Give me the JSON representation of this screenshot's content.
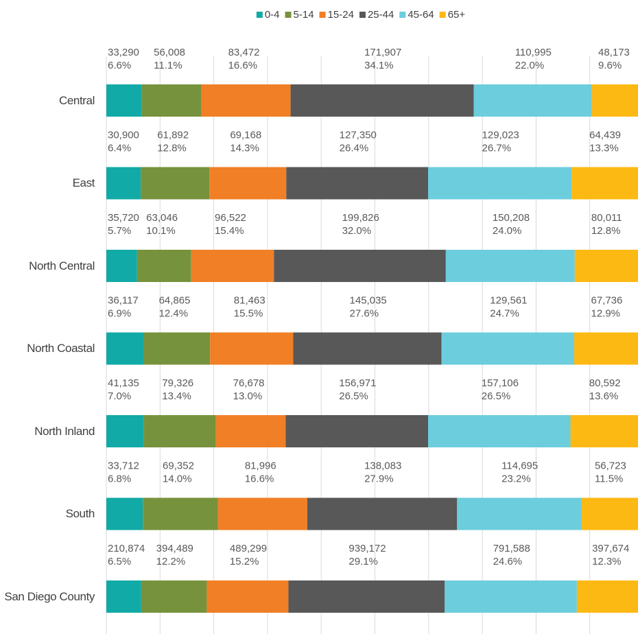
{
  "chart_data": {
    "type": "bar",
    "orientation": "horizontal",
    "stacked": true,
    "categories": [
      "Central",
      "East",
      "North Central",
      "North Coastal",
      "North Inland",
      "South",
      "San Diego County"
    ],
    "xlim": [
      0,
      100
    ],
    "xticks": [
      0,
      10,
      20,
      30,
      40,
      50,
      60,
      70,
      80,
      90,
      100
    ],
    "grid": true,
    "legend": "top",
    "series": [
      {
        "name": "0-4",
        "color": "#12aaa6",
        "values": [
          6.6,
          6.4,
          5.7,
          6.9,
          7.0,
          6.8,
          6.5
        ],
        "value_labels": [
          "6.6%",
          "6.4%",
          "5.7%",
          "6.9%",
          "7.0%",
          "6.8%",
          "6.5%"
        ],
        "count_labels": [
          "33,290",
          "30,900",
          "35,720",
          "36,117",
          "41,135",
          "33,712",
          "210,874"
        ]
      },
      {
        "name": "5-14",
        "color": "#77923c",
        "values": [
          11.1,
          12.8,
          10.1,
          12.4,
          13.4,
          14.0,
          12.2
        ],
        "value_labels": [
          "11.1%",
          "12.8%",
          "10.1%",
          "12.4%",
          "13.4%",
          "14.0%",
          "12.2%"
        ],
        "count_labels": [
          "56,008",
          "61,892",
          "63,046",
          "64,865",
          "79,326",
          "69,352",
          "394,489"
        ]
      },
      {
        "name": "15-24",
        "color": "#f07f26",
        "values": [
          16.6,
          14.3,
          15.4,
          15.5,
          13.0,
          16.6,
          15.2
        ],
        "value_labels": [
          "16.6%",
          "14.3%",
          "15.4%",
          "15.5%",
          "13.0%",
          "16.6%",
          "15.2%"
        ],
        "count_labels": [
          "83,472",
          "69,168",
          "96,522",
          "81,463",
          "76,678",
          "81,996",
          "489,299"
        ]
      },
      {
        "name": "25-44",
        "color": "#585858",
        "values": [
          34.1,
          26.4,
          32.0,
          27.6,
          26.5,
          27.9,
          29.1
        ],
        "value_labels": [
          "34.1%",
          "26.4%",
          "32.0%",
          "27.6%",
          "26.5%",
          "27.9%",
          "29.1%"
        ],
        "count_labels": [
          "171,907",
          "127,350",
          "199,826",
          "145,035",
          "156,971",
          "138,083",
          "939,172"
        ]
      },
      {
        "name": "45-64",
        "color": "#6ccddd",
        "values": [
          22.0,
          26.7,
          24.0,
          24.7,
          26.5,
          23.2,
          24.6
        ],
        "value_labels": [
          "22.0%",
          "26.7%",
          "24.0%",
          "24.7%",
          "26.5%",
          "23.2%",
          "24.6%"
        ],
        "count_labels": [
          "110,995",
          "129,023",
          "150,208",
          "129,561",
          "157,106",
          "114,695",
          "791,588"
        ]
      },
      {
        "name": "65+",
        "color": "#fdb913",
        "values": [
          9.6,
          13.3,
          12.8,
          12.9,
          13.6,
          11.5,
          12.3
        ],
        "value_labels": [
          "9.6%",
          "13.3%",
          "12.8%",
          "12.9%",
          "13.6%",
          "11.5%",
          "12.3%"
        ],
        "count_labels": [
          "48,173",
          "64,439",
          "80,011",
          "67,736",
          "80,592",
          "56,723",
          "397,674"
        ]
      }
    ]
  }
}
